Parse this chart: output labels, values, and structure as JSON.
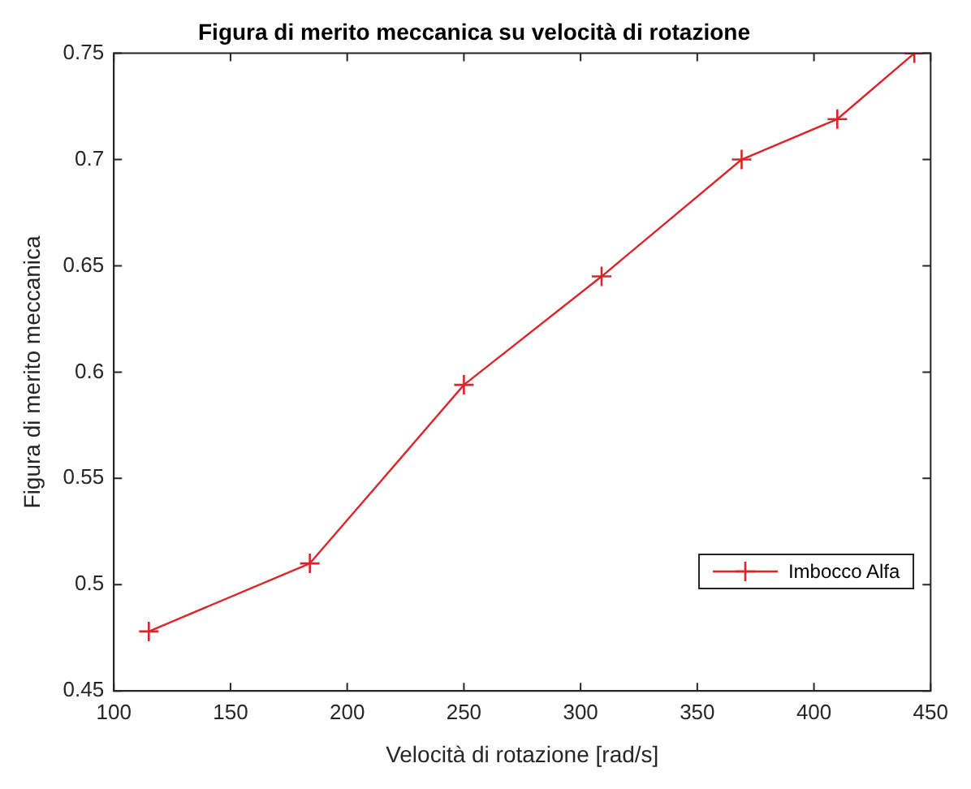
{
  "chart_data": {
    "type": "line",
    "title": "Figura di merito meccanica su velocità di rotazione",
    "xlabel": "Velocità di rotazione [rad/s]",
    "ylabel": "Figura di merito meccanica",
    "x": [
      115,
      184,
      250,
      309,
      369,
      410,
      443
    ],
    "series": [
      {
        "name": "Imbocco Alfa",
        "color": "#d9262b",
        "values": [
          0.478,
          0.51,
          0.594,
          0.645,
          0.7,
          0.719,
          0.75
        ]
      }
    ],
    "xlim": [
      100,
      450
    ],
    "xticks": [
      100,
      150,
      200,
      250,
      300,
      350,
      400,
      450
    ],
    "ylim": [
      0.45,
      0.75
    ],
    "yticks": [
      0.45,
      0.5,
      0.55,
      0.6,
      0.65,
      0.7,
      0.75
    ],
    "grid": false,
    "legend": "bottom right",
    "marker": "cross",
    "line_style": "solid"
  }
}
